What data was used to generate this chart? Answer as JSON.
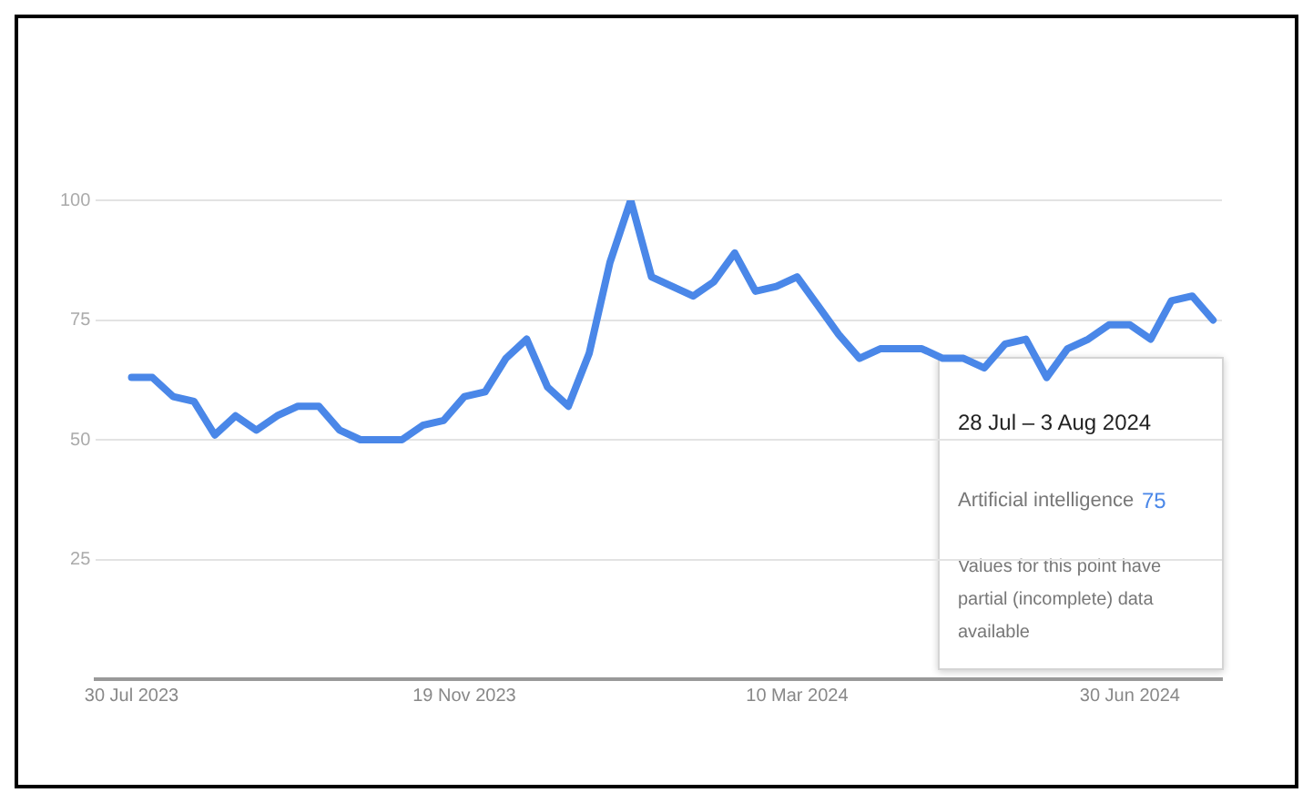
{
  "chart_data": {
    "type": "line",
    "x": [
      "2023-07-30",
      "2023-08-06",
      "2023-08-13",
      "2023-08-20",
      "2023-08-27",
      "2023-09-03",
      "2023-09-10",
      "2023-09-17",
      "2023-09-24",
      "2023-10-01",
      "2023-10-08",
      "2023-10-15",
      "2023-10-22",
      "2023-10-29",
      "2023-11-05",
      "2023-11-12",
      "2023-11-19",
      "2023-11-26",
      "2023-12-03",
      "2023-12-10",
      "2023-12-17",
      "2023-12-24",
      "2023-12-31",
      "2024-01-07",
      "2024-01-14",
      "2024-01-21",
      "2024-01-28",
      "2024-02-04",
      "2024-02-11",
      "2024-02-18",
      "2024-02-25",
      "2024-03-03",
      "2024-03-10",
      "2024-03-17",
      "2024-03-24",
      "2024-03-31",
      "2024-04-07",
      "2024-04-14",
      "2024-04-21",
      "2024-04-28",
      "2024-05-05",
      "2024-05-12",
      "2024-05-19",
      "2024-05-26",
      "2024-06-02",
      "2024-06-09",
      "2024-06-16",
      "2024-06-23",
      "2024-06-30",
      "2024-07-07",
      "2024-07-14",
      "2024-07-21",
      "2024-07-28"
    ],
    "series": [
      {
        "name": "Artificial intelligence",
        "color": "#4a87e8",
        "values": [
          63,
          63,
          59,
          58,
          51,
          55,
          52,
          55,
          57,
          57,
          52,
          50,
          50,
          50,
          53,
          54,
          59,
          60,
          67,
          71,
          61,
          57,
          68,
          87,
          100,
          84,
          82,
          80,
          83,
          89,
          81,
          82,
          84,
          78,
          72,
          67,
          69,
          69,
          69,
          67,
          67,
          65,
          70,
          71,
          63,
          69,
          71,
          74,
          74,
          71,
          79,
          80,
          75
        ]
      }
    ],
    "xlim": [
      "2023-07-18",
      "2024-07-31"
    ],
    "xticks": [
      {
        "value": "2023-07-30",
        "label": "30 Jul 2023"
      },
      {
        "value": "2023-11-19",
        "label": "19 Nov 2023"
      },
      {
        "value": "2024-03-10",
        "label": "10 Mar 2024"
      },
      {
        "value": "2024-06-30",
        "label": "30 Jun 2024"
      }
    ],
    "ylim": [
      0,
      100
    ],
    "yticks": [
      {
        "value": 0,
        "label": null
      },
      25,
      50,
      75,
      100
    ],
    "grid": "y",
    "legend": false,
    "marker": "none",
    "line_style": "solid",
    "annotations": [
      "28 Jul – 3 Aug 2024",
      "75",
      "Values for this point have partial (incomplete) data available"
    ]
  }
}
